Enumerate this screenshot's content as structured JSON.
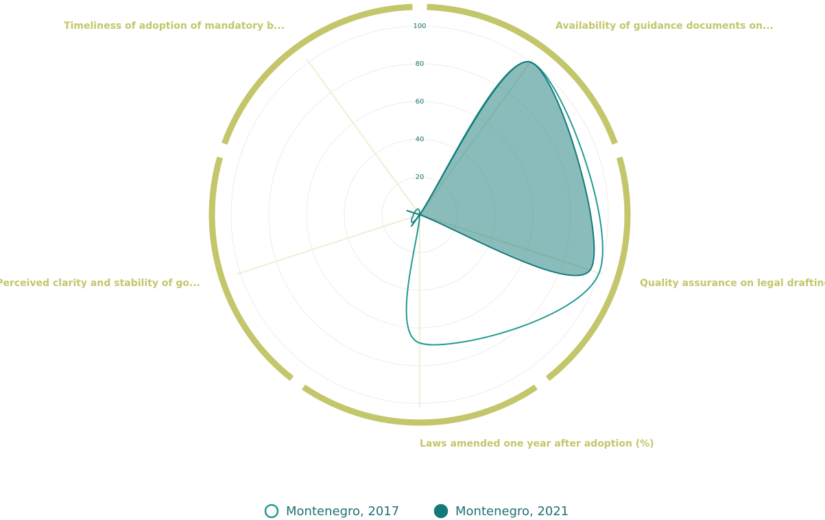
{
  "chart_data": {
    "type": "radar",
    "categories": [
      "Availability of guidance documents on...",
      "Quality assurance on legal drafting",
      "Laws amended one year after adoption (%)",
      "Perceived clarity and stability of go...",
      "Timeliness of adoption of mandatory b..."
    ],
    "series": [
      {
        "name": "Montenegro, 2017",
        "color": "#1f9a92",
        "filled": false,
        "values": [
          100,
          100,
          68,
          0,
          0
        ]
      },
      {
        "name": "Montenegro, 2021",
        "color": "#137a78",
        "filled": true,
        "values": [
          100,
          95,
          0,
          0,
          0
        ]
      }
    ],
    "rlim": [
      0,
      100
    ],
    "rticks": [
      20,
      40,
      60,
      80,
      100
    ],
    "grid": true
  }
}
